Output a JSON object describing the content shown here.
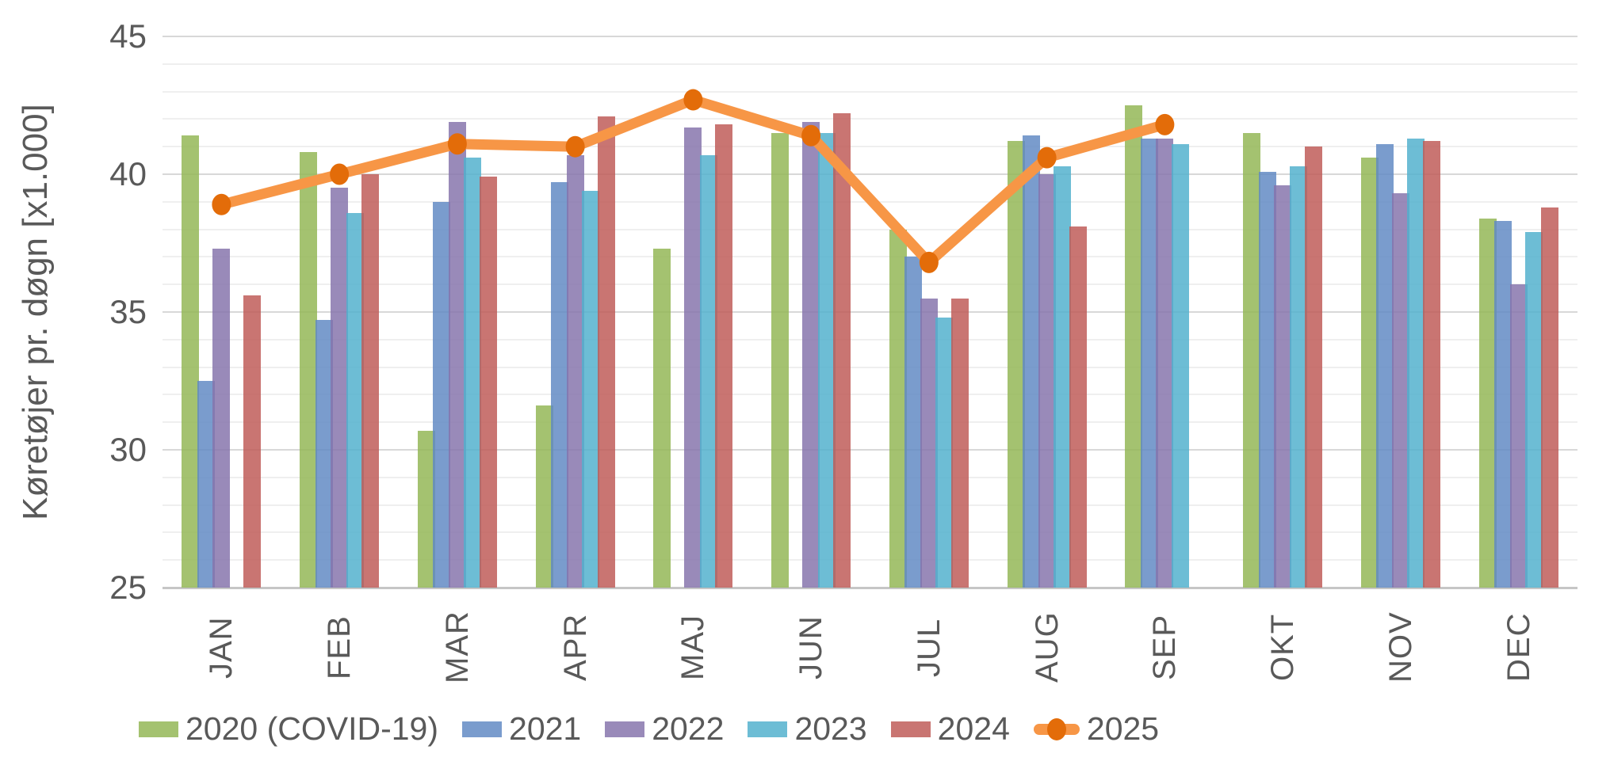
{
  "chart_data": {
    "type": "bar",
    "title": "",
    "ylabel": "Køretøjer pr. døgn [x1.000]",
    "xlabel": "",
    "categories": [
      "JAN",
      "FEB",
      "MAR",
      "APR",
      "MAJ",
      "JUN",
      "JUL",
      "AUG",
      "SEP",
      "OKT",
      "NOV",
      "DEC"
    ],
    "ylim": [
      25,
      45
    ],
    "yticks_major": [
      25,
      30,
      35,
      40,
      45
    ],
    "ytick_minor_step": 1,
    "grid": "horizontal, minor every 1, major every 5",
    "legend_position": "bottom",
    "text_color": "#595959",
    "bar_alpha": 0.84,
    "series": [
      {
        "name": "2020 (COVID-19)",
        "type": "bar",
        "color": "#93b655",
        "values": [
          41.4,
          40.8,
          30.7,
          31.6,
          37.3,
          41.5,
          38.0,
          41.2,
          42.5,
          41.5,
          40.6,
          38.4
        ]
      },
      {
        "name": "2021",
        "type": "bar",
        "color": "#6189c4",
        "values": [
          32.5,
          34.7,
          39.0,
          39.7,
          null,
          null,
          37.0,
          41.4,
          41.3,
          40.1,
          41.1,
          38.3
        ]
      },
      {
        "name": "2022",
        "type": "bar",
        "color": "#8573ab",
        "values": [
          37.3,
          39.5,
          41.9,
          40.7,
          41.7,
          41.9,
          35.5,
          40.0,
          41.3,
          39.6,
          39.3,
          36.0
        ]
      },
      {
        "name": "2023",
        "type": "bar",
        "color": "#51b0cd",
        "values": [
          null,
          38.6,
          40.6,
          39.4,
          40.7,
          41.5,
          34.8,
          40.3,
          41.1,
          40.3,
          41.3,
          37.9
        ]
      },
      {
        "name": "2024",
        "type": "bar",
        "color": "#bf5b57",
        "values": [
          35.6,
          40.0,
          39.9,
          42.1,
          41.8,
          42.2,
          35.5,
          38.1,
          null,
          41.0,
          41.2,
          38.8
        ]
      },
      {
        "name": "2025",
        "type": "line",
        "color": "#f79646",
        "marker_color": "#e36c09",
        "values": [
          38.9,
          40.0,
          41.1,
          41.0,
          42.7,
          41.4,
          36.8,
          40.6,
          41.8,
          null,
          null,
          null
        ]
      }
    ]
  }
}
